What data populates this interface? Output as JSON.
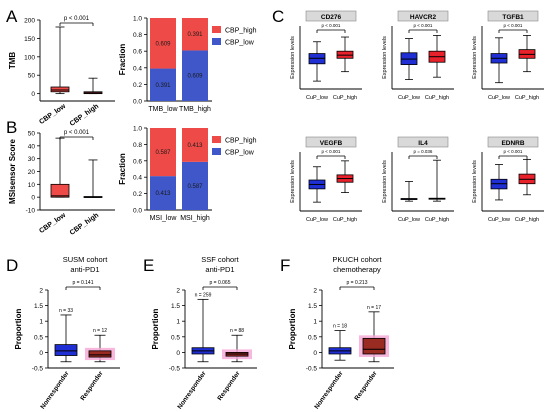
{
  "colors": {
    "red": "#ee4b48",
    "blue": "#3f57c8",
    "boxRed": "#e8212b",
    "boxBlue": "#1f2fd4",
    "darkRed": "#9a2b22",
    "pink": "#f6a6d6",
    "facetBg": "#d9d9d9"
  },
  "panel_labels": [
    "A",
    "B",
    "C",
    "D",
    "E",
    "F"
  ],
  "chart_data": [
    {
      "id": "A_box",
      "type": "box",
      "ylabel": "TMB",
      "categories": [
        "CBP_low",
        "CBP_high"
      ],
      "ylim": [
        -20,
        200
      ],
      "yticks": [
        0,
        50,
        100,
        150,
        200
      ],
      "boxes": [
        {
          "min": 0,
          "q1": 5,
          "median": 10,
          "q3": 18,
          "max": 181
        },
        {
          "min": 0,
          "q1": 0,
          "median": 2,
          "q3": 5,
          "max": 42
        }
      ],
      "annotation": "p < 0.001"
    },
    {
      "id": "A_frac",
      "type": "stacked-bar",
      "ylabel": "Fraction",
      "categories": [
        "TMB_low",
        "TMB_high"
      ],
      "ylim": [
        0,
        1
      ],
      "yticks": [
        0.0,
        0.2,
        0.4,
        0.6,
        0.8,
        1.0
      ],
      "series": [
        {
          "name": "CBP_low",
          "values": [
            0.391,
            0.609
          ],
          "labels": [
            "0.391",
            "0.609"
          ]
        },
        {
          "name": "CBP_high",
          "values": [
            0.609,
            0.391
          ],
          "labels": [
            "0.609",
            "0.391"
          ]
        }
      ],
      "legend": [
        "CBP_high",
        "CBP_low"
      ]
    },
    {
      "id": "B_box",
      "type": "box",
      "ylabel": "MSIsensor Score",
      "categories": [
        "CBP_low",
        "CBP_high"
      ],
      "ylim": [
        -10,
        50
      ],
      "yticks": [
        -10,
        0,
        10,
        20,
        30,
        40,
        50
      ],
      "boxes": [
        {
          "min": 0,
          "q1": 0,
          "median": 1,
          "q3": 10,
          "max": 46
        },
        {
          "min": 0,
          "q1": 0,
          "median": 0,
          "q3": 0.5,
          "max": 29
        }
      ],
      "annotation": "p < 0.001"
    },
    {
      "id": "B_frac",
      "type": "stacked-bar",
      "ylabel": "Fraction",
      "categories": [
        "MSI_low",
        "MSI_high"
      ],
      "ylim": [
        0,
        1
      ],
      "yticks": [
        0.0,
        0.2,
        0.4,
        0.6,
        0.8,
        1.0
      ],
      "series": [
        {
          "name": "CBP_low",
          "values": [
            0.413,
            0.587
          ],
          "labels": [
            "0.413",
            "0.587"
          ]
        },
        {
          "name": "CBP_high",
          "values": [
            0.587,
            0.413
          ],
          "labels": [
            "0.587",
            "0.413"
          ]
        }
      ],
      "legend": [
        "CBP_high",
        "CBP_low"
      ]
    },
    {
      "id": "C1",
      "type": "box",
      "facet": "CD276",
      "ylabel": "Expression levels",
      "categories": [
        "CuP_low",
        "CuP_high"
      ],
      "annotation": "p < 0.001",
      "ylim": [
        -4,
        4
      ],
      "boxes": [
        {
          "min": -3.0,
          "q1": -0.8,
          "median": -0.1,
          "q3": 0.5,
          "max": 2.0
        },
        {
          "min": -1.8,
          "q1": -0.1,
          "median": 0.3,
          "q3": 0.8,
          "max": 2.6
        }
      ]
    },
    {
      "id": "C2",
      "type": "box",
      "facet": "HAVCR2",
      "ylabel": "Expression levels",
      "categories": [
        "CuP_low",
        "CuP_high"
      ],
      "annotation": "p < 0.001",
      "ylim": [
        -4,
        4
      ],
      "boxes": [
        {
          "min": -2.8,
          "q1": -0.9,
          "median": -0.2,
          "q3": 0.6,
          "max": 2.4
        },
        {
          "min": -2.5,
          "q1": -0.6,
          "median": 0.1,
          "q3": 0.8,
          "max": 2.8
        }
      ]
    },
    {
      "id": "C3",
      "type": "box",
      "facet": "TGFB1",
      "ylabel": "Expression levels",
      "categories": [
        "CuP_low",
        "CuP_high"
      ],
      "annotation": "p < 0.001",
      "ylim": [
        -4,
        4
      ],
      "boxes": [
        {
          "min": -3.2,
          "q1": -0.7,
          "median": -0.1,
          "q3": 0.5,
          "max": 2.5
        },
        {
          "min": -1.8,
          "q1": -0.1,
          "median": 0.4,
          "q3": 1.0,
          "max": 2.8
        }
      ]
    },
    {
      "id": "C4",
      "type": "box",
      "facet": "VEGFB",
      "ylabel": "Expression levels",
      "categories": [
        "CuP_low",
        "CuP_high"
      ],
      "annotation": "p < 0.001",
      "ylim": [
        -4,
        4
      ],
      "boxes": [
        {
          "min": -2.8,
          "q1": -1.0,
          "median": -0.4,
          "q3": 0.2,
          "max": 2.0
        },
        {
          "min": -1.5,
          "q1": -0.1,
          "median": 0.4,
          "q3": 0.9,
          "max": 2.8
        }
      ]
    },
    {
      "id": "C5",
      "type": "box",
      "facet": "IL4",
      "ylabel": "Expression levels",
      "categories": [
        "CuP_low",
        "CuP_high"
      ],
      "annotation": "p = 0.036",
      "ylim": [
        -4,
        14
      ],
      "boxes": [
        {
          "min": -1.0,
          "q1": -0.4,
          "median": -0.3,
          "q3": -0.2,
          "max": 5.0
        },
        {
          "min": -1.0,
          "q1": -0.4,
          "median": -0.3,
          "q3": -0.1,
          "max": 11.5
        }
      ]
    },
    {
      "id": "C6",
      "type": "box",
      "facet": "EDNRB",
      "ylabel": "Expression levels",
      "categories": [
        "CuP_low",
        "CuP_high"
      ],
      "annotation": "p < 0.001",
      "ylim": [
        -4,
        4
      ],
      "boxes": [
        {
          "min": -2.5,
          "q1": -1.0,
          "median": -0.3,
          "q3": 0.3,
          "max": 2.3
        },
        {
          "min": -1.8,
          "q1": -0.3,
          "median": 0.3,
          "q3": 1.0,
          "max": 3.0
        }
      ]
    },
    {
      "id": "D",
      "type": "box",
      "title": [
        "SUSM cohort",
        "anti-PD1"
      ],
      "ylabel": "Proportion",
      "categories": [
        "Nonresponder",
        "Responder"
      ],
      "ylim": [
        -0.5,
        2.0
      ],
      "yticks": [
        -0.5,
        0.0,
        0.5,
        1.0,
        1.5,
        2.0
      ],
      "annotation": "p = 0.141",
      "n": [
        "n = 33",
        "n = 12"
      ],
      "boxes": [
        {
          "min": -0.3,
          "q1": -0.1,
          "median": 0.05,
          "q3": 0.25,
          "max": 1.2
        },
        {
          "min": -0.3,
          "q1": -0.15,
          "median": -0.08,
          "q3": 0.05,
          "max": 0.55
        }
      ]
    },
    {
      "id": "E",
      "type": "box",
      "title": [
        "SSF cohort",
        "anti-PD1"
      ],
      "ylabel": "Proportion",
      "categories": [
        "Nonresponder",
        "Responder"
      ],
      "ylim": [
        -0.5,
        2.0
      ],
      "yticks": [
        -0.5,
        0.0,
        0.5,
        1.0,
        1.5,
        2.0
      ],
      "annotation": "p = 0.065",
      "n": [
        "n = 259",
        "n = 88"
      ],
      "boxes": [
        {
          "min": -0.3,
          "q1": -0.05,
          "median": 0.05,
          "q3": 0.15,
          "max": 1.7
        },
        {
          "min": -0.3,
          "q1": -0.12,
          "median": -0.05,
          "q3": 0.0,
          "max": 0.55
        }
      ]
    },
    {
      "id": "F",
      "type": "box",
      "title": [
        "PKUCH cohort",
        "chemotherapy"
      ],
      "ylabel": "Proportion",
      "categories": [
        "Nonresponder",
        "Responder"
      ],
      "ylim": [
        -0.5,
        2.0
      ],
      "yticks": [
        -0.5,
        0.0,
        0.5,
        1.0,
        1.5,
        2.0
      ],
      "annotation": "p = 0.213",
      "n": [
        "n = 18",
        "n = 17"
      ],
      "boxes": [
        {
          "min": -0.25,
          "q1": -0.05,
          "median": 0.05,
          "q3": 0.15,
          "max": 0.7
        },
        {
          "min": -0.3,
          "q1": -0.05,
          "median": 0.1,
          "q3": 0.45,
          "max": 1.3
        }
      ]
    }
  ]
}
